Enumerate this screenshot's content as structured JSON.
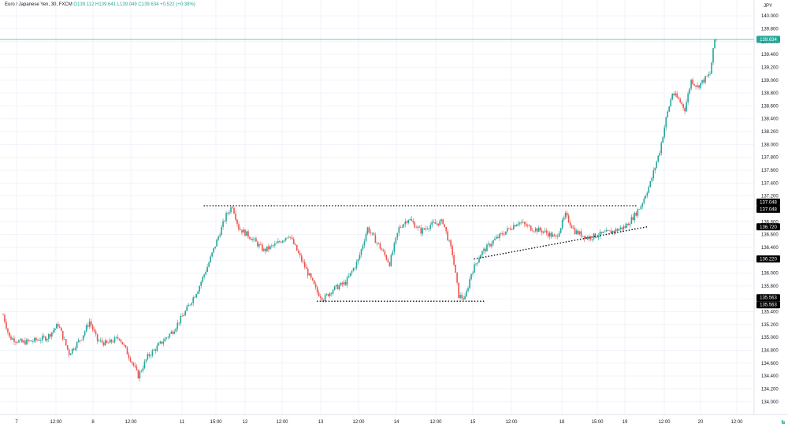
{
  "header": {
    "symbol": "Euro / Japanese Yen, 30, FXCM",
    "open": "O139.112",
    "high": "H139.641",
    "low": "L139.049",
    "close": "C139.634",
    "change": "+0.522 (+0.38%)"
  },
  "colors": {
    "up": "#26a69a",
    "down": "#ef5350",
    "price_line": "#26a69a",
    "marker": "#000000",
    "axis_text": "#131722",
    "grid": "#f0f3fa"
  },
  "chart_data": {
    "type": "candlestick",
    "currency_label": "JPY",
    "ylim": [
      133.85,
      140.1
    ],
    "y_ticks": [
      "140.000",
      "139.800",
      "139.600",
      "139.400",
      "139.200",
      "139.000",
      "138.800",
      "138.600",
      "138.400",
      "138.200",
      "138.000",
      "137.800",
      "137.600",
      "137.400",
      "137.200",
      "137.000",
      "136.800",
      "136.600",
      "136.400",
      "136.200",
      "136.000",
      "135.800",
      "135.600",
      "135.400",
      "135.200",
      "135.000",
      "134.800",
      "134.600",
      "134.400",
      "134.200",
      "134.000"
    ],
    "x_ticks": [
      "7",
      "12:00",
      "8",
      "12:00",
      "11",
      "15:00",
      "12",
      "12:00",
      "13",
      "12:00",
      "14",
      "12:00",
      "15",
      "12:00",
      "18",
      "15:00",
      "19",
      "12:00",
      "20",
      "12:00"
    ],
    "last_price": "139.634",
    "price_markers": [
      "137.048",
      "137.048",
      "136.720",
      "136.220",
      "135.563",
      "135.563"
    ],
    "anchors": [
      [
        0,
        135.35
      ],
      [
        4,
        135.0
      ],
      [
        12,
        134.92
      ],
      [
        20,
        134.95
      ],
      [
        28,
        135.0
      ],
      [
        35,
        135.2
      ],
      [
        42,
        134.75
      ],
      [
        50,
        135.0
      ],
      [
        55,
        135.25
      ],
      [
        60,
        134.95
      ],
      [
        66,
        134.9
      ],
      [
        74,
        135.0
      ],
      [
        82,
        134.62
      ],
      [
        86,
        134.4
      ],
      [
        92,
        134.7
      ],
      [
        100,
        134.9
      ],
      [
        108,
        135.1
      ],
      [
        116,
        135.4
      ],
      [
        124,
        135.75
      ],
      [
        130,
        136.1
      ],
      [
        136,
        136.5
      ],
      [
        142,
        136.9
      ],
      [
        146,
        137.05
      ],
      [
        150,
        136.7
      ],
      [
        158,
        136.55
      ],
      [
        166,
        136.35
      ],
      [
        174,
        136.45
      ],
      [
        182,
        136.6
      ],
      [
        188,
        136.3
      ],
      [
        194,
        136.0
      ],
      [
        200,
        135.7
      ],
      [
        204,
        135.6
      ],
      [
        210,
        135.75
      ],
      [
        218,
        135.85
      ],
      [
        226,
        136.2
      ],
      [
        232,
        136.7
      ],
      [
        240,
        136.4
      ],
      [
        246,
        136.15
      ],
      [
        252,
        136.7
      ],
      [
        258,
        136.85
      ],
      [
        266,
        136.65
      ],
      [
        272,
        136.75
      ],
      [
        280,
        136.8
      ],
      [
        286,
        136.3
      ],
      [
        290,
        135.65
      ],
      [
        294,
        135.6
      ],
      [
        298,
        136.0
      ],
      [
        304,
        136.3
      ],
      [
        312,
        136.5
      ],
      [
        320,
        136.65
      ],
      [
        328,
        136.8
      ],
      [
        336,
        136.7
      ],
      [
        344,
        136.65
      ],
      [
        352,
        136.55
      ],
      [
        358,
        136.9
      ],
      [
        364,
        136.65
      ],
      [
        372,
        136.55
      ],
      [
        380,
        136.6
      ],
      [
        388,
        136.65
      ],
      [
        396,
        136.72
      ],
      [
        402,
        136.9
      ],
      [
        406,
        137.05
      ],
      [
        412,
        137.4
      ],
      [
        418,
        137.9
      ],
      [
        422,
        138.4
      ],
      [
        426,
        138.8
      ],
      [
        430,
        138.7
      ],
      [
        434,
        138.55
      ],
      [
        438,
        139.0
      ],
      [
        442,
        138.9
      ],
      [
        446,
        139.0
      ],
      [
        450,
        139.1
      ],
      [
        453,
        139.63
      ]
    ],
    "lines": [
      {
        "style": "dotted",
        "points": [
          [
            128,
            137.048
          ],
          [
            404,
            137.048
          ]
        ]
      },
      {
        "style": "dotted",
        "points": [
          [
            200,
            135.563
          ],
          [
            306,
            135.563
          ]
        ]
      },
      {
        "style": "dotted",
        "points": [
          [
            300,
            136.22
          ],
          [
            410,
            136.72
          ]
        ]
      }
    ]
  }
}
